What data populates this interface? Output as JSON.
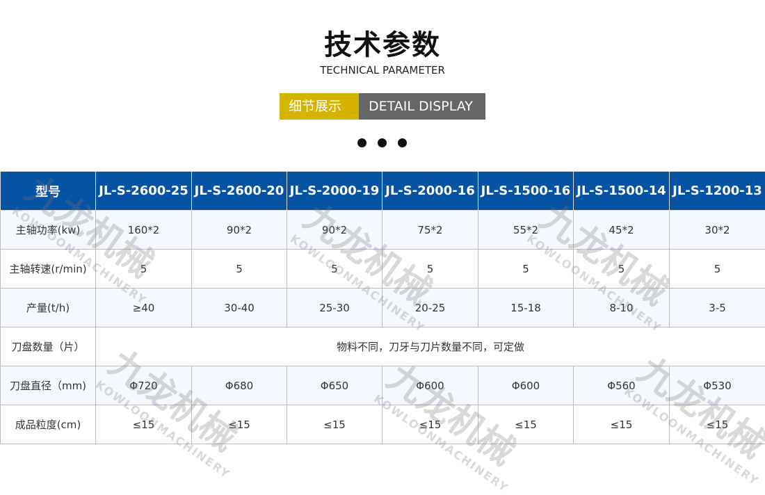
{
  "header": {
    "title": "技术参数",
    "subtitle": "TECHNICAL PARAMETER",
    "badge_cn": "细节展示",
    "badge_en": "DETAIL DISPLAY"
  },
  "colors": {
    "header_bg": "#0652a3",
    "badge_yellow": "#d4b400",
    "badge_gray": "#666666"
  },
  "watermark": {
    "cn": "九龙机械",
    "en": "KOWLOONMACHINERY"
  },
  "table": {
    "columns": [
      "型号",
      "JL-S-2600-25",
      "JL-S-2600-20",
      "JL-S-2000-19",
      "JL-S-2000-16",
      "JL-S-1500-16",
      "JL-S-1500-14",
      "JL-S-1200-13"
    ],
    "rows": [
      {
        "label": "主轴功率(kw)",
        "values": [
          "160*2",
          "90*2",
          "90*2",
          "75*2",
          "55*2",
          "45*2",
          "30*2"
        ]
      },
      {
        "label": "主轴转速(r/min)",
        "values": [
          "5",
          "5",
          "5",
          "5",
          "5",
          "5",
          "5"
        ]
      },
      {
        "label": "产量(t/h)",
        "values": [
          "≥40",
          "30-40",
          "25-30",
          "20-25",
          "15-18",
          "8-10",
          "3-5"
        ]
      },
      {
        "label": "刀盘数量（片）",
        "merged": "物料不同，刀牙与刀片数量不同，可定做"
      },
      {
        "label": "刀盘直径（mm)",
        "values": [
          "Φ720",
          "Φ680",
          "Φ650",
          "Φ600",
          "Φ600",
          "Φ560",
          "Φ530"
        ]
      },
      {
        "label": "成品粒度(cm)",
        "values": [
          "≤15",
          "≤15",
          "≤15",
          "≤15",
          "≤15",
          "≤15",
          "≤15"
        ]
      }
    ]
  }
}
